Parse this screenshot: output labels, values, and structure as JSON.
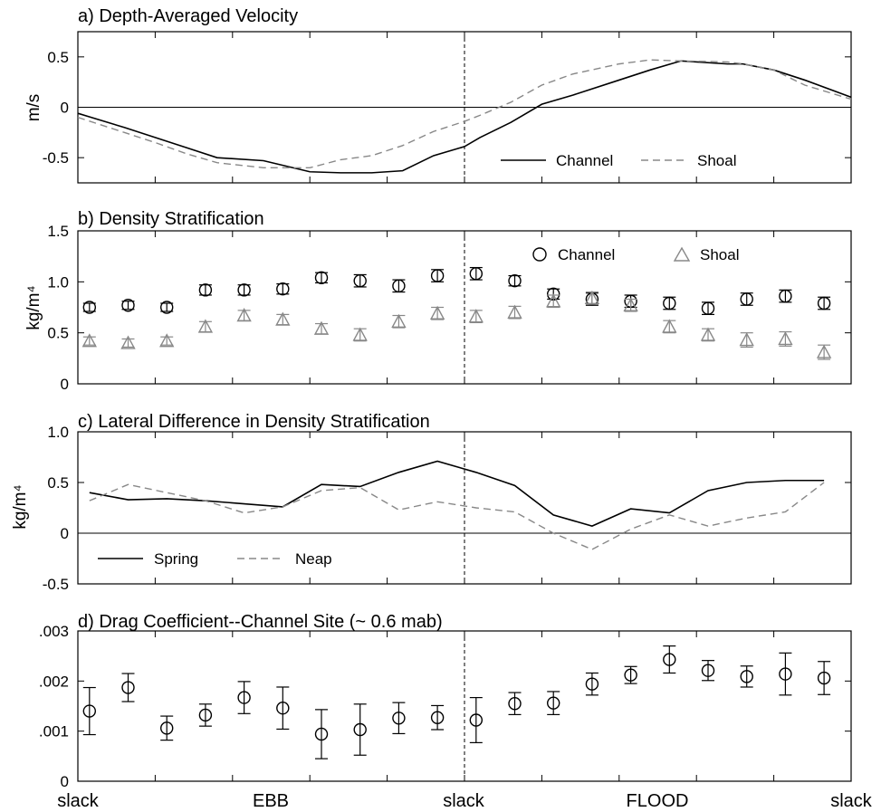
{
  "colors": {
    "channel": "#000000",
    "shoal": "#888888"
  },
  "x_labels": [
    "slack",
    "EBB",
    "slack",
    "FLOOD",
    "slack"
  ],
  "chart_data": [
    {
      "type": "line",
      "title": "a) Depth-Averaged Velocity",
      "ylabel": "m/s",
      "ylim": [
        -0.75,
        0.75
      ],
      "yticks": [
        -0.5,
        0,
        0.5
      ],
      "ytick_labels": [
        "-0.5",
        "0",
        "0.5"
      ],
      "legend": "bottom-right",
      "series": [
        {
          "name": "Channel",
          "style": "solid",
          "x": [
            0,
            0.6,
            1,
            1.4,
            1.8,
            2.4,
            3,
            3.4,
            3.8,
            4.2,
            4.6,
            5.0,
            5.2,
            5.6,
            6.0,
            6.4,
            7,
            7.4,
            7.8,
            8.4,
            8.6,
            9.0,
            9.4,
            10.0
          ],
          "y": [
            -0.06,
            -0.2,
            -0.3,
            -0.4,
            -0.5,
            -0.53,
            -0.64,
            -0.65,
            -0.65,
            -0.63,
            -0.48,
            -0.39,
            -0.3,
            -0.15,
            0.03,
            0.12,
            0.27,
            0.37,
            0.46,
            0.43,
            0.43,
            0.37,
            0.27,
            0.1
          ]
        },
        {
          "name": "Shoal",
          "style": "dashed",
          "x": [
            0,
            0.6,
            1,
            1.4,
            1.8,
            2.4,
            3,
            3.4,
            3.8,
            4.2,
            4.6,
            5.0,
            5.2,
            5.6,
            6.0,
            6.4,
            7,
            7.4,
            7.8,
            8.4,
            8.6,
            9.0,
            9.4,
            10.0
          ],
          "y": [
            -0.1,
            -0.25,
            -0.35,
            -0.46,
            -0.55,
            -0.6,
            -0.6,
            -0.52,
            -0.48,
            -0.38,
            -0.24,
            -0.14,
            -0.08,
            0.05,
            0.22,
            0.33,
            0.43,
            0.47,
            0.46,
            0.45,
            0.43,
            0.37,
            0.22,
            0.08
          ]
        }
      ]
    },
    {
      "type": "scatter",
      "title": "b) Density Stratification",
      "ylabel": "kg/m⁴",
      "ylim": [
        0,
        1.5
      ],
      "yticks": [
        0,
        0.5,
        1.0,
        1.5
      ],
      "ytick_labels": [
        "0",
        "0.5",
        "1.0",
        "1.5"
      ],
      "legend": "top-right",
      "series": [
        {
          "name": "Channel",
          "marker": "circle",
          "x": [
            0.15,
            0.65,
            1.15,
            1.65,
            2.15,
            2.65,
            3.15,
            3.65,
            4.15,
            4.65,
            5.15,
            5.65,
            6.15,
            6.65,
            7.15,
            7.65,
            8.15,
            8.65,
            9.15,
            9.65
          ],
          "y": [
            0.75,
            0.77,
            0.75,
            0.92,
            0.92,
            0.93,
            1.04,
            1.01,
            0.96,
            1.06,
            1.08,
            1.01,
            0.88,
            0.83,
            0.81,
            0.79,
            0.74,
            0.83,
            0.86,
            0.79
          ],
          "err": [
            0.04,
            0.04,
            0.04,
            0.05,
            0.05,
            0.05,
            0.05,
            0.06,
            0.06,
            0.06,
            0.06,
            0.05,
            0.05,
            0.06,
            0.06,
            0.06,
            0.06,
            0.06,
            0.06,
            0.06
          ]
        },
        {
          "name": "Shoal",
          "marker": "triangle",
          "x": [
            0.15,
            0.65,
            1.15,
            1.65,
            2.15,
            2.65,
            3.15,
            3.65,
            4.15,
            4.65,
            5.15,
            5.65,
            6.15,
            6.65,
            7.15,
            7.65,
            8.15,
            8.65,
            9.15,
            9.65
          ],
          "y": [
            0.42,
            0.4,
            0.42,
            0.56,
            0.67,
            0.63,
            0.54,
            0.48,
            0.61,
            0.69,
            0.66,
            0.7,
            0.81,
            0.84,
            0.77,
            0.56,
            0.48,
            0.43,
            0.44,
            0.31
          ],
          "err": [
            0.04,
            0.04,
            0.04,
            0.05,
            0.05,
            0.05,
            0.05,
            0.06,
            0.06,
            0.06,
            0.06,
            0.06,
            0.06,
            0.06,
            0.06,
            0.06,
            0.06,
            0.07,
            0.07,
            0.07
          ]
        }
      ]
    },
    {
      "type": "line",
      "title": "c) Lateral Difference in Density Stratification",
      "ylabel": "kg/m⁴",
      "ylim": [
        -0.5,
        1.0
      ],
      "yticks": [
        -0.5,
        0,
        0.5,
        1.0
      ],
      "ytick_labels": [
        "-0.5",
        "0",
        "0.5",
        "1.0"
      ],
      "legend": "bottom-left",
      "series": [
        {
          "name": "Spring",
          "style": "solid",
          "x": [
            0.15,
            0.65,
            1.15,
            1.65,
            2.15,
            2.65,
            3.15,
            3.65,
            4.15,
            4.65,
            5.15,
            5.65,
            6.15,
            6.65,
            7.15,
            7.65,
            8.15,
            8.65,
            9.15,
            9.65
          ],
          "y": [
            0.4,
            0.33,
            0.34,
            0.32,
            0.29,
            0.26,
            0.48,
            0.46,
            0.6,
            0.71,
            0.6,
            0.47,
            0.18,
            0.07,
            0.24,
            0.2,
            0.42,
            0.5,
            0.52,
            0.52
          ]
        },
        {
          "name": "Neap",
          "style": "dashed",
          "x": [
            0.15,
            0.65,
            1.15,
            1.65,
            2.15,
            2.65,
            3.15,
            3.65,
            4.15,
            4.65,
            5.15,
            5.65,
            6.15,
            6.65,
            7.15,
            7.65,
            8.15,
            8.65,
            9.15,
            9.65
          ],
          "y": [
            0.32,
            0.48,
            0.4,
            0.32,
            0.2,
            0.26,
            0.42,
            0.45,
            0.23,
            0.31,
            0.25,
            0.21,
            0.0,
            -0.16,
            0.04,
            0.18,
            0.07,
            0.15,
            0.21,
            0.5
          ]
        }
      ]
    },
    {
      "type": "scatter",
      "title": "d) Drag Coefficient--Channel Site (~ 0.6 mab)",
      "ylabel": "",
      "ylim": [
        0,
        0.003
      ],
      "yticks": [
        0,
        0.001,
        0.002,
        0.003
      ],
      "ytick_labels": [
        "0",
        ".001",
        ".002",
        ".003"
      ],
      "series": [
        {
          "marker": "circle",
          "x": [
            0.15,
            0.65,
            1.15,
            1.65,
            2.15,
            2.65,
            3.15,
            3.65,
            4.15,
            4.65,
            5.15,
            5.65,
            6.15,
            6.65,
            7.15,
            7.65,
            8.15,
            8.65,
            9.15,
            9.65
          ],
          "y": [
            0.0014,
            0.00187,
            0.00106,
            0.00132,
            0.00167,
            0.00146,
            0.00094,
            0.00103,
            0.00126,
            0.00127,
            0.00122,
            0.00155,
            0.00156,
            0.00194,
            0.00212,
            0.00243,
            0.00221,
            0.00209,
            0.00214,
            0.00206
          ],
          "err": [
            0.00047,
            0.00028,
            0.00024,
            0.00022,
            0.00032,
            0.00042,
            0.00049,
            0.00051,
            0.00031,
            0.00024,
            0.00045,
            0.00022,
            0.00023,
            0.00022,
            0.00017,
            0.00027,
            0.0002,
            0.00021,
            0.00042,
            0.00033
          ]
        }
      ]
    }
  ]
}
